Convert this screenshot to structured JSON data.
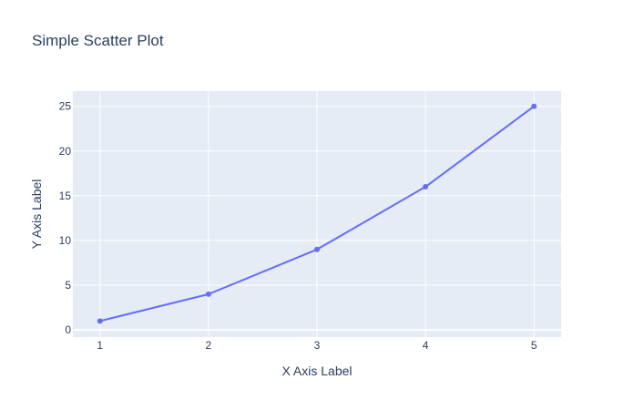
{
  "chart_data": {
    "type": "scatter",
    "mode": "lines+markers",
    "title": "Simple Scatter Plot",
    "xlabel": "X Axis Label",
    "ylabel": "Y Axis Label",
    "x": [
      1,
      2,
      3,
      4,
      5
    ],
    "series": [
      {
        "values": [
          1,
          4,
          9,
          16,
          25
        ]
      }
    ],
    "xlim": [
      0.75,
      5.25
    ],
    "ylim": [
      -0.8,
      26.7
    ],
    "x_ticks": [
      1,
      2,
      3,
      4,
      5
    ],
    "y_ticks": [
      0,
      5,
      10,
      15,
      20,
      25
    ],
    "grid": true,
    "colors": {
      "series": "#636efa",
      "plot_background": "#e5ecf6",
      "grid": "#ffffff",
      "text": "#2a3f5f"
    }
  }
}
